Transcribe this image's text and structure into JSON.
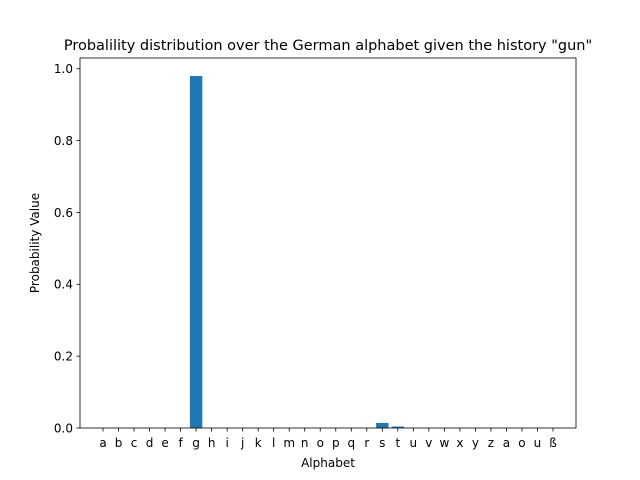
{
  "chart_data": {
    "type": "bar",
    "title": "Probalility distribution over the German alphabet given the history \"gun\"",
    "xlabel": "Alphabet",
    "ylabel": "Probability Value",
    "ylim": [
      0,
      1.03
    ],
    "yticks": [
      "0.0",
      "0.2",
      "0.4",
      "0.6",
      "0.8",
      "1.0"
    ],
    "categories": [
      "a",
      "b",
      "c",
      "d",
      "e",
      "f",
      "g",
      "h",
      "i",
      "j",
      "k",
      "l",
      "m",
      "n",
      "o",
      "p",
      "q",
      "r",
      "s",
      "t",
      "u",
      "v",
      "w",
      "x",
      "y",
      "z",
      "a",
      "o",
      "u",
      "ß"
    ],
    "values": [
      0,
      0,
      0,
      0,
      0,
      0,
      0.98,
      0,
      0,
      0,
      0,
      0,
      0,
      0,
      0,
      0,
      0,
      0,
      0.014,
      0.004,
      0,
      0,
      0,
      0,
      0,
      0,
      0,
      0,
      0,
      0
    ],
    "bar_color": "#1f77b4",
    "grid": false,
    "legend": "none"
  }
}
